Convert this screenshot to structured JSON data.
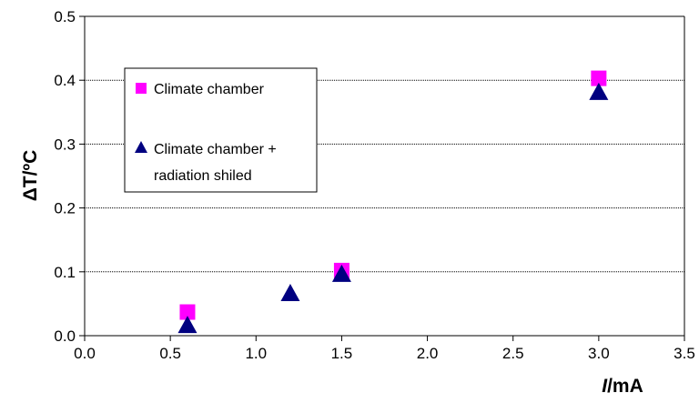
{
  "chart_data": {
    "type": "scatter",
    "xlabel": {
      "italic": "I",
      "rest": "/mA"
    },
    "ylabel": "ΔT/ºC",
    "xlim": [
      0,
      3.5
    ],
    "ylim": [
      0,
      0.5
    ],
    "xticks": [
      "0.0",
      "0.5",
      "1.0",
      "1.5",
      "2.0",
      "2.5",
      "3.0",
      "3.5"
    ],
    "yticks": [
      "0.0",
      "0.1",
      "0.2",
      "0.3",
      "0.4",
      "0.5"
    ],
    "grid": "horizontal-dotted",
    "legend_position": "upper-left",
    "series": [
      {
        "name": "Climate chamber",
        "marker": "square",
        "color": "#ff00ff",
        "points": [
          {
            "x": 0.6,
            "y": 0.037
          },
          {
            "x": 1.5,
            "y": 0.102
          },
          {
            "x": 3.0,
            "y": 0.403
          }
        ]
      },
      {
        "name": [
          "Climate chamber +",
          "radiation shiled"
        ],
        "marker": "triangle",
        "color": "#000080",
        "points": [
          {
            "x": 0.6,
            "y": 0.015
          },
          {
            "x": 1.2,
            "y": 0.065
          },
          {
            "x": 1.5,
            "y": 0.095
          },
          {
            "x": 3.0,
            "y": 0.38
          }
        ]
      }
    ]
  }
}
